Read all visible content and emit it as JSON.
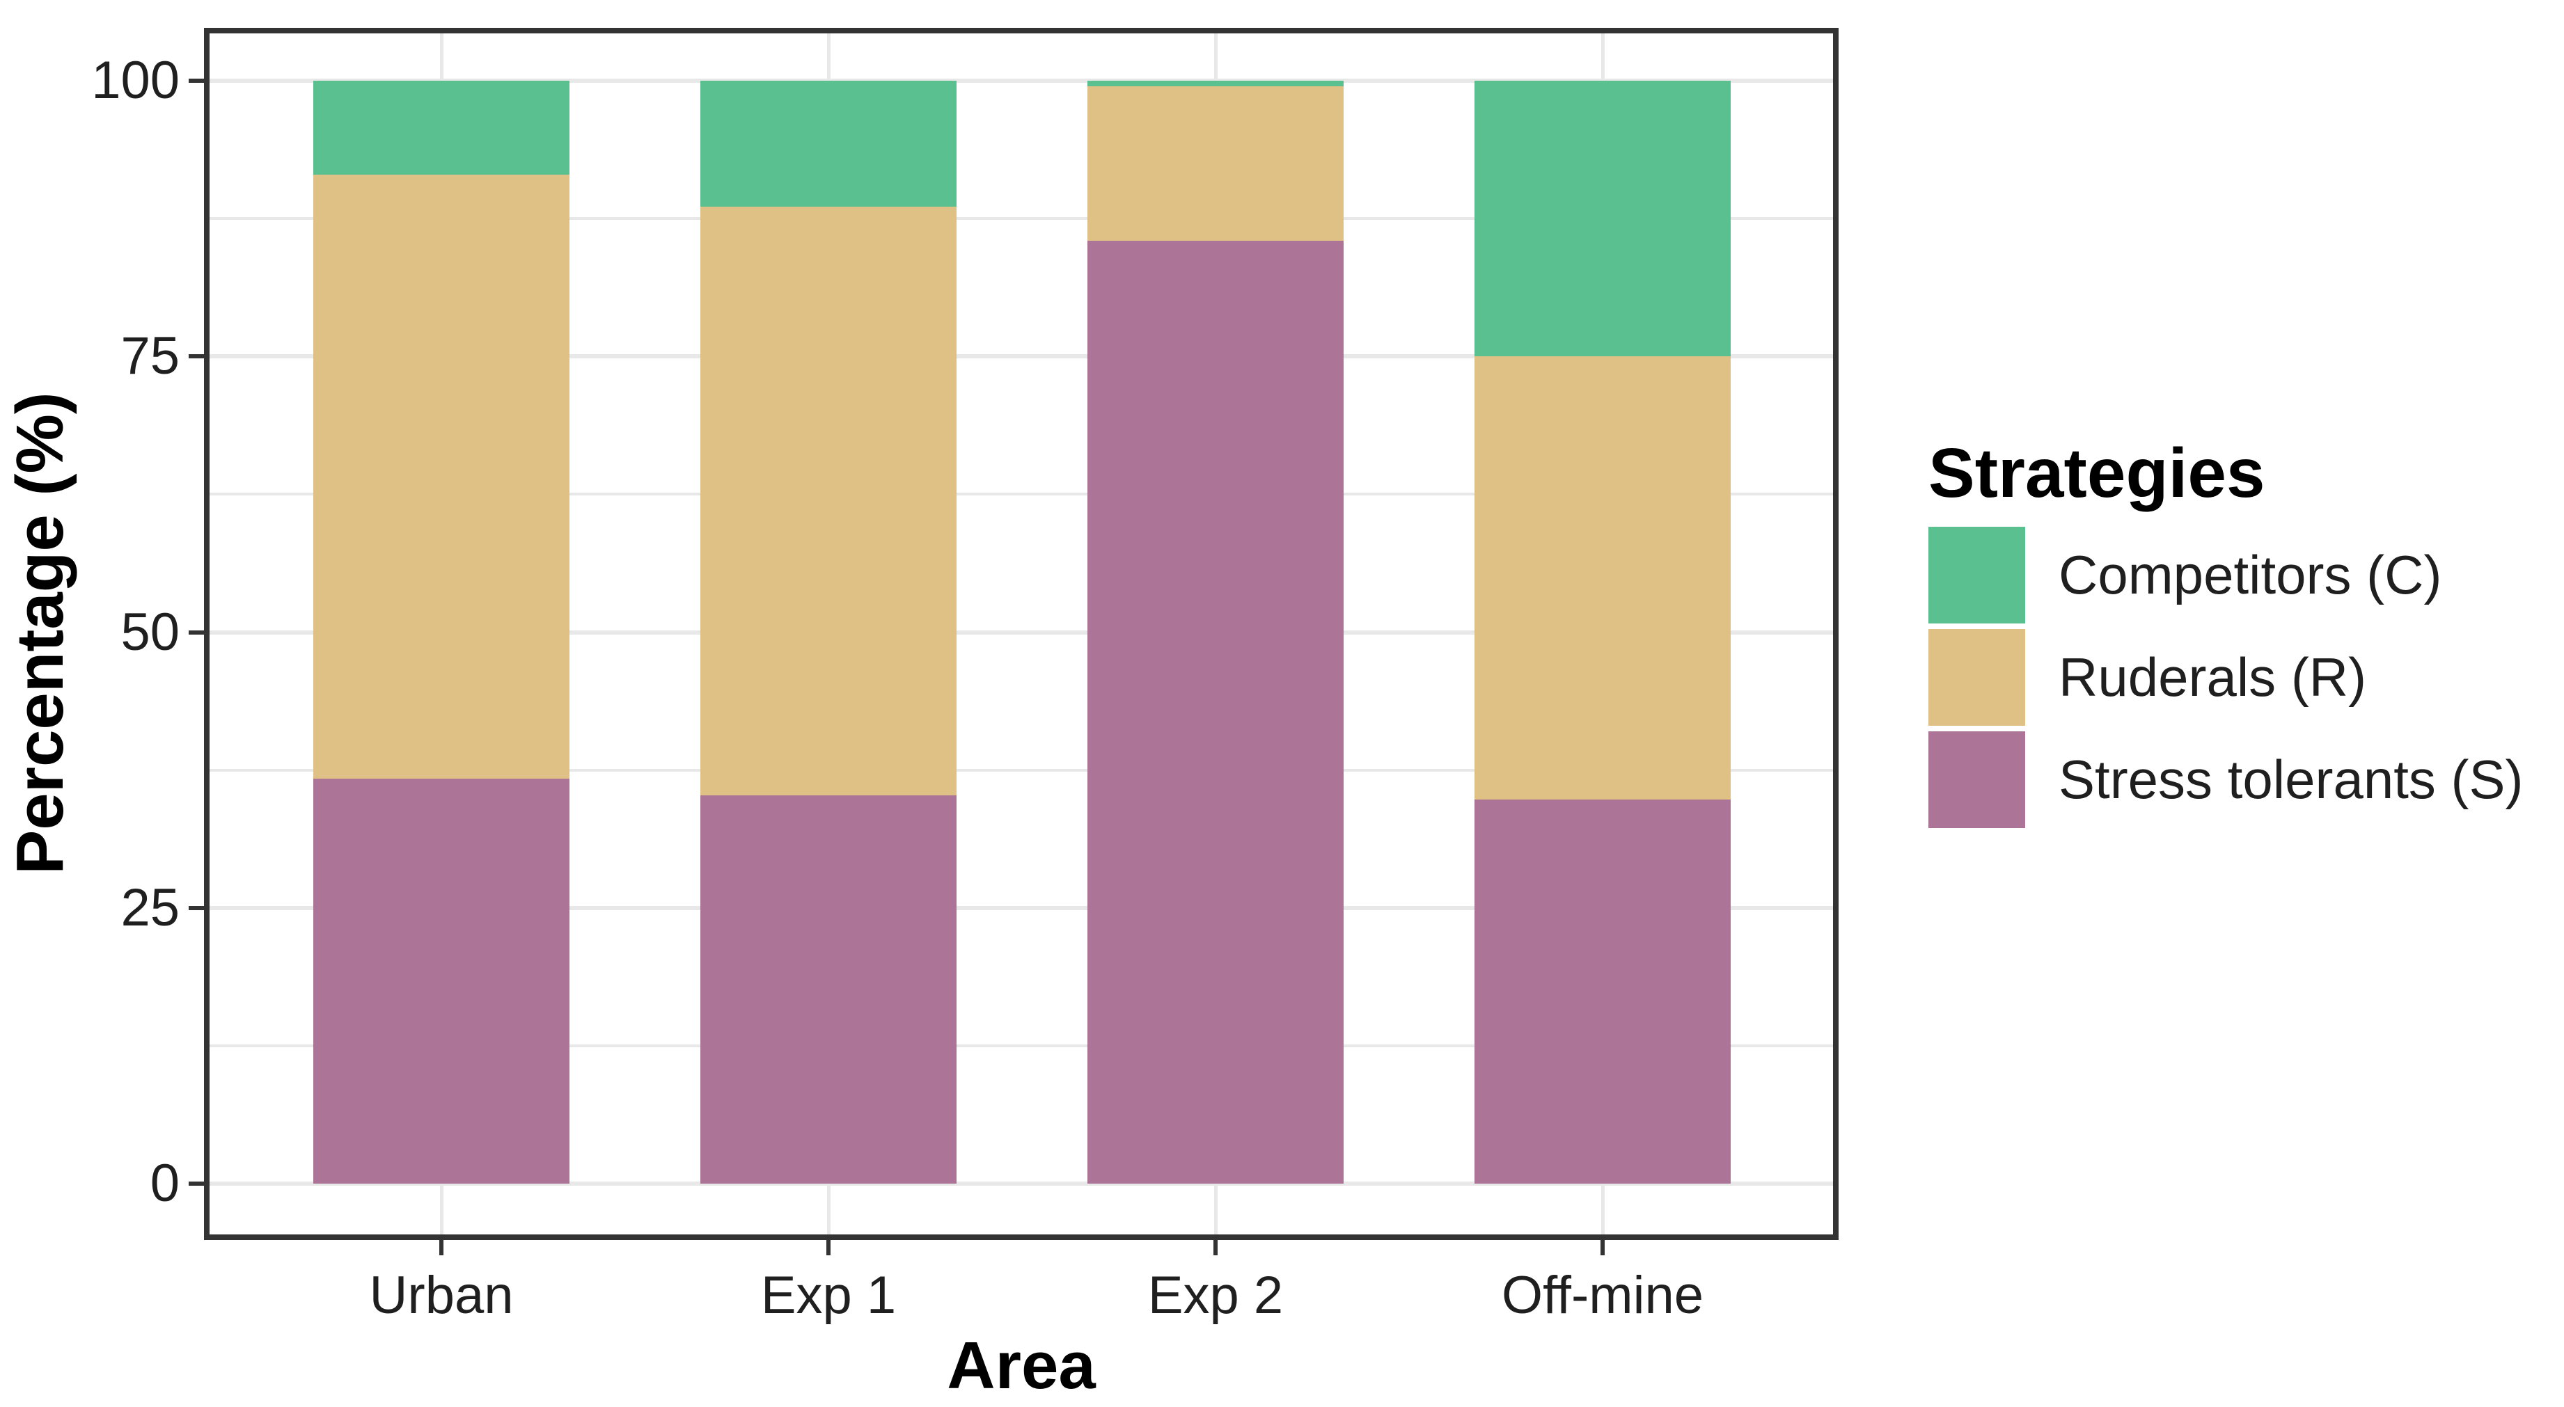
{
  "chart_data": {
    "type": "bar",
    "stacked": true,
    "title": "",
    "xlabel": "Area",
    "ylabel": "Percentage (%)",
    "categories": [
      "Urban",
      "Exp 1",
      "Exp 2",
      "Off-mine"
    ],
    "series": [
      {
        "name": "Competitors (C)",
        "color": "#5BC08F",
        "values": [
          8.5,
          11.4,
          0.5,
          25.0
        ]
      },
      {
        "name": "Ruderals (R)",
        "color": "#DFC186",
        "values": [
          54.8,
          53.4,
          14.0,
          40.2
        ]
      },
      {
        "name": "Stress tolerants (S)",
        "color": "#AC7497",
        "values": [
          36.7,
          35.2,
          85.5,
          34.8
        ]
      }
    ],
    "stack_order_bottom_to_top": [
      "Stress tolerants (S)",
      "Ruderals (R)",
      "Competitors (C)"
    ],
    "ylim": [
      0,
      100
    ],
    "y_ticks": [
      0,
      25,
      50,
      75,
      100
    ],
    "y_minor_ticks": [
      12.5,
      37.5,
      62.5,
      87.5
    ],
    "legend": {
      "title": "Strategies",
      "position": "right"
    },
    "grid": {
      "horizontal": "major+minor",
      "vertical": "major-at-category-centers",
      "color": "#e8e8e8"
    },
    "panel_border_color": "#333333",
    "background_color": "#ffffff"
  }
}
